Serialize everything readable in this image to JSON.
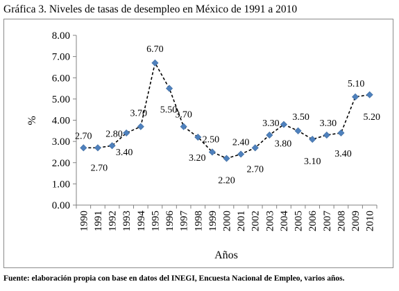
{
  "title": "Gráfica 3. Niveles de tasas de desempleo en México de 1991 a 2010",
  "source": "Fuente: elaboración propia con base en datos del INEGI, Encuesta Nacional de Empleo, varios años.",
  "chart_data": {
    "type": "line",
    "title": "",
    "xlabel": "Años",
    "ylabel": "%",
    "ylim": [
      0,
      8
    ],
    "y_ticks": [
      "0.00",
      "1.00",
      "2.00",
      "3.00",
      "4.00",
      "5.00",
      "6.00",
      "7.00",
      "8.00"
    ],
    "grid": false,
    "legend": "none",
    "line_color": "#000000",
    "line_style": "dashed",
    "marker_color": "#4f81bd",
    "marker": "diamond",
    "categories": [
      "1990",
      "1991",
      "1992",
      "1993",
      "1994",
      "1995",
      "1996",
      "1997",
      "1998",
      "1999",
      "2000",
      "2001",
      "2002",
      "2003",
      "2004",
      "2005",
      "2006",
      "2007",
      "2008",
      "2009",
      "2010"
    ],
    "series": [
      {
        "values": [
          2.7,
          2.7,
          2.8,
          3.4,
          3.7,
          6.7,
          5.5,
          3.7,
          3.2,
          2.5,
          2.2,
          2.4,
          2.7,
          3.3,
          3.8,
          3.5,
          3.1,
          3.3,
          3.4,
          5.1,
          5.2
        ]
      }
    ],
    "data_labels": [
      "2.70",
      "2.70",
      "2.80",
      "3.40",
      "3.70",
      "6.70",
      "5.50",
      "3.70",
      "3.20",
      "2.50",
      "2.20",
      "2.40",
      "2.70",
      "3.30",
      "3.80",
      "3.50",
      "3.10",
      "3.30",
      "3.40",
      "5.10",
      "5.20"
    ]
  }
}
